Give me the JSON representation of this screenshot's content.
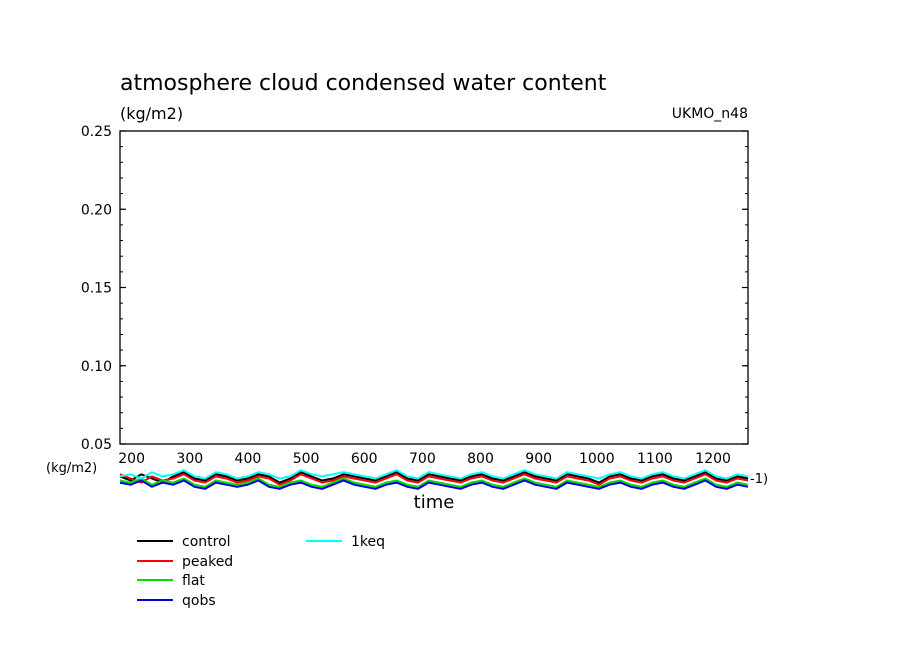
{
  "chart_data": {
    "type": "line",
    "title": "atmosphere cloud condensed water content",
    "units": "(kg/m2)",
    "model": "UKMO_n48",
    "xlabel": "time",
    "lower_units": "(kg/m2)",
    "lower_suffix": "-1)",
    "yticks": [
      "0.25",
      "0.20",
      "0.15",
      "0.10",
      "0.05"
    ],
    "ylim": [
      0.05,
      0.25
    ],
    "xticks": [
      "200",
      "300",
      "400",
      "500",
      "600",
      "700",
      "800",
      "900",
      "1000",
      "1100",
      "1200"
    ],
    "xlim": [
      180,
      1260
    ],
    "grid": false,
    "legend_position": "bottom-left",
    "series": [
      {
        "name": "control",
        "color": "#000000",
        "values": [
          0.034,
          0.032,
          0.035,
          0.033,
          0.031,
          0.034,
          0.036,
          0.033,
          0.032,
          0.035,
          0.034,
          0.032,
          0.033,
          0.035,
          0.034,
          0.031,
          0.033,
          0.036,
          0.034,
          0.032,
          0.033,
          0.035,
          0.034,
          0.033,
          0.032,
          0.034,
          0.036,
          0.033,
          0.032,
          0.035,
          0.034,
          0.033,
          0.032,
          0.034,
          0.035,
          0.033,
          0.032,
          0.034,
          0.036,
          0.034,
          0.033,
          0.032,
          0.035,
          0.034,
          0.033,
          0.031,
          0.034,
          0.035,
          0.033,
          0.032,
          0.034,
          0.035,
          0.033,
          0.032,
          0.034,
          0.036,
          0.033,
          0.032,
          0.034,
          0.033
        ]
      },
      {
        "name": "peaked",
        "color": "#ff0000",
        "values": [
          0.035,
          0.033,
          0.031,
          0.034,
          0.032,
          0.033,
          0.035,
          0.032,
          0.031,
          0.034,
          0.033,
          0.031,
          0.032,
          0.034,
          0.033,
          0.03,
          0.032,
          0.035,
          0.033,
          0.031,
          0.032,
          0.034,
          0.033,
          0.032,
          0.031,
          0.033,
          0.035,
          0.032,
          0.031,
          0.034,
          0.033,
          0.032,
          0.031,
          0.033,
          0.034,
          0.032,
          0.031,
          0.033,
          0.035,
          0.033,
          0.032,
          0.031,
          0.034,
          0.033,
          0.032,
          0.03,
          0.033,
          0.034,
          0.032,
          0.031,
          0.033,
          0.034,
          0.032,
          0.031,
          0.033,
          0.035,
          0.032,
          0.031,
          0.033,
          0.032
        ]
      },
      {
        "name": "flat",
        "color": "#00dd00",
        "values": [
          0.032,
          0.031,
          0.033,
          0.03,
          0.032,
          0.031,
          0.033,
          0.03,
          0.029,
          0.032,
          0.031,
          0.03,
          0.031,
          0.033,
          0.03,
          0.029,
          0.031,
          0.032,
          0.03,
          0.029,
          0.031,
          0.033,
          0.031,
          0.03,
          0.029,
          0.031,
          0.032,
          0.03,
          0.029,
          0.032,
          0.031,
          0.03,
          0.029,
          0.031,
          0.032,
          0.03,
          0.029,
          0.031,
          0.033,
          0.031,
          0.03,
          0.029,
          0.032,
          0.031,
          0.03,
          0.029,
          0.031,
          0.032,
          0.03,
          0.029,
          0.031,
          0.032,
          0.03,
          0.029,
          0.031,
          0.033,
          0.03,
          0.029,
          0.031,
          0.03
        ]
      },
      {
        "name": "qobs",
        "color": "#0000dd",
        "values": [
          0.031,
          0.03,
          0.032,
          0.029,
          0.031,
          0.03,
          0.032,
          0.029,
          0.028,
          0.031,
          0.03,
          0.029,
          0.03,
          0.032,
          0.029,
          0.028,
          0.03,
          0.031,
          0.029,
          0.028,
          0.03,
          0.032,
          0.03,
          0.029,
          0.028,
          0.03,
          0.031,
          0.029,
          0.028,
          0.031,
          0.03,
          0.029,
          0.028,
          0.03,
          0.031,
          0.029,
          0.028,
          0.03,
          0.032,
          0.03,
          0.029,
          0.028,
          0.031,
          0.03,
          0.029,
          0.028,
          0.03,
          0.031,
          0.029,
          0.028,
          0.03,
          0.031,
          0.029,
          0.028,
          0.03,
          0.032,
          0.029,
          0.028,
          0.03,
          0.029
        ]
      },
      {
        "name": "1keq",
        "color": "#00ffff",
        "values": [
          0.034,
          0.035,
          0.033,
          0.036,
          0.034,
          0.035,
          0.037,
          0.034,
          0.033,
          0.036,
          0.035,
          0.033,
          0.034,
          0.036,
          0.035,
          0.033,
          0.034,
          0.037,
          0.035,
          0.034,
          0.035,
          0.036,
          0.035,
          0.034,
          0.033,
          0.035,
          0.037,
          0.034,
          0.033,
          0.036,
          0.035,
          0.034,
          0.033,
          0.035,
          0.036,
          0.034,
          0.033,
          0.035,
          0.037,
          0.035,
          0.034,
          0.033,
          0.036,
          0.035,
          0.034,
          0.033,
          0.035,
          0.036,
          0.034,
          0.033,
          0.035,
          0.036,
          0.034,
          0.033,
          0.035,
          0.037,
          0.034,
          0.033,
          0.035,
          0.034
        ]
      }
    ]
  }
}
